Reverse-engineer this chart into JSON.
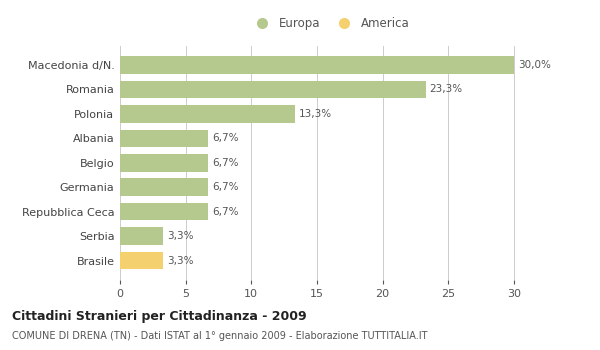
{
  "categories": [
    "Macedonia d/N.",
    "Romania",
    "Polonia",
    "Albania",
    "Belgio",
    "Germania",
    "Repubblica Ceca",
    "Serbia",
    "Brasile"
  ],
  "values": [
    30.0,
    23.3,
    13.3,
    6.7,
    6.7,
    6.7,
    6.7,
    3.3,
    3.3
  ],
  "labels": [
    "30,0%",
    "23,3%",
    "13,3%",
    "6,7%",
    "6,7%",
    "6,7%",
    "6,7%",
    "3,3%",
    "3,3%"
  ],
  "colors": [
    "#b5c98e",
    "#b5c98e",
    "#b5c98e",
    "#b5c98e",
    "#b5c98e",
    "#b5c98e",
    "#b5c98e",
    "#b5c98e",
    "#f5d06e"
  ],
  "europa_color": "#b5c98e",
  "america_color": "#f5d06e",
  "title": "Cittadini Stranieri per Cittadinanza - 2009",
  "subtitle": "COMUNE DI DRENA (TN) - Dati ISTAT al 1° gennaio 2009 - Elaborazione TUTTITALIA.IT",
  "xlim": [
    0,
    32
  ],
  "xticks": [
    0,
    5,
    10,
    15,
    20,
    25,
    30
  ],
  "background_color": "#ffffff",
  "bar_height": 0.72,
  "grid_color": "#cccccc",
  "legend_europa": "Europa",
  "legend_america": "America"
}
